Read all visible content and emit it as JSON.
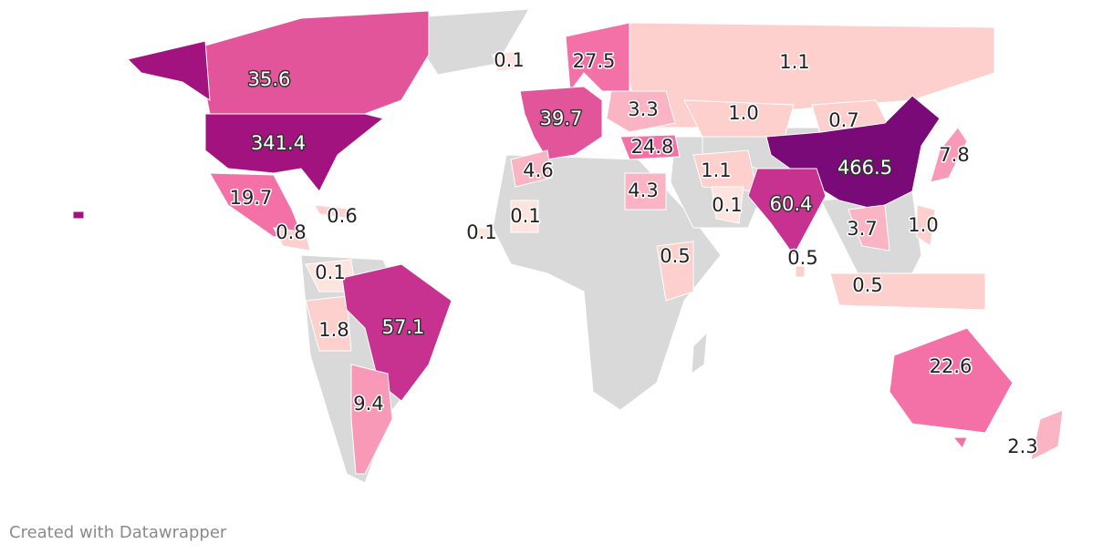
{
  "chart_data": {
    "type": "map",
    "values": [
      0.1,
      27.5,
      1.1,
      35.6,
      39.7,
      3.3,
      1,
      0.7,
      341.4,
      24.8,
      466.5,
      7.8,
      4.6,
      1.1,
      19.7,
      4.3,
      0.1,
      60.4,
      0.6,
      0.1,
      0.8,
      0.1,
      3.7,
      1,
      0.5,
      0.5,
      0.1,
      0.5,
      1.8,
      57.1,
      22.6,
      9.4,
      2.3
    ],
    "value_labels": [
      "0.1",
      "27.5",
      "1.1",
      "35.6",
      "39.7",
      "3.3",
      "1.0",
      "0.7",
      "341.4",
      "24.8",
      "466.5",
      "7.8",
      "4.6",
      "1.1",
      "19.7",
      "4.3",
      "0.1",
      "60.4",
      "0.6",
      "0.1",
      "0.8",
      "0.1",
      "3.7",
      "1.0",
      "0.5",
      "0.5",
      "0.1",
      "0.5",
      "1.8",
      "57.1",
      "22.6",
      "9.4",
      "2.3"
    ],
    "colors": [
      "#fde4df",
      "#f471a8",
      "#fdd0ce",
      "#e2559b",
      "#e2559b",
      "#fbb4c4",
      "#fdd0ce",
      "#fdd0ce",
      "#a3137f",
      "#f471a8",
      "#7b0a79",
      "#f89ab7",
      "#fbb4c4",
      "#fdd0ce",
      "#f471a8",
      "#fbb4c4",
      "#fde4df",
      "#c7318f",
      "#fdd0ce",
      "#fde4df",
      "#fdd0ce",
      "#fde4df",
      "#fbb4c4",
      "#fdd0ce",
      "#fdd0ce",
      "#fdd0ce",
      "#fde4df",
      "#fdd0ce",
      "#fdd0ce",
      "#c7318f",
      "#f471a8",
      "#f89ab7",
      "#fbb4c4"
    ],
    "credit": "Created with Datawrapper"
  }
}
